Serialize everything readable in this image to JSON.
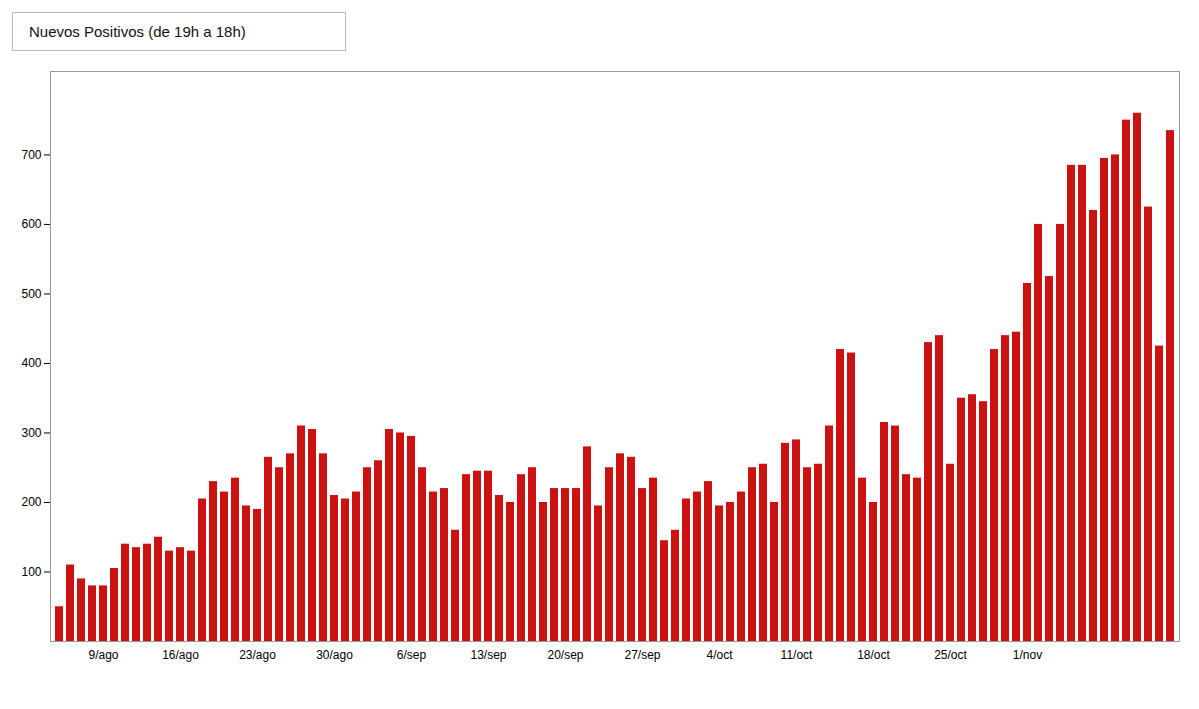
{
  "chart_data": {
    "type": "bar",
    "title": "Nuevos Positivos (de 19h a 18h)",
    "categories": [
      null,
      null,
      null,
      null,
      "9/ago",
      null,
      null,
      null,
      null,
      null,
      null,
      "16/ago",
      null,
      null,
      null,
      null,
      null,
      null,
      "23/ago",
      null,
      null,
      null,
      null,
      null,
      null,
      "30/ago",
      null,
      null,
      null,
      null,
      null,
      null,
      "6/sep",
      null,
      null,
      null,
      null,
      null,
      null,
      "13/sep",
      null,
      null,
      null,
      null,
      null,
      null,
      "20/sep",
      null,
      null,
      null,
      null,
      null,
      null,
      "27/sep",
      null,
      null,
      null,
      null,
      null,
      null,
      "4/oct",
      null,
      null,
      null,
      null,
      null,
      null,
      "11/oct",
      null,
      null,
      null,
      null,
      null,
      null,
      "18/oct",
      null,
      null,
      null,
      null,
      null,
      null,
      "25/oct",
      null,
      null,
      null,
      null,
      null,
      null,
      "1/nov",
      null,
      null,
      null,
      null,
      null,
      null,
      null,
      null,
      null,
      null,
      null,
      null,
      null
    ],
    "values": [
      50,
      110,
      90,
      80,
      80,
      105,
      140,
      135,
      140,
      150,
      130,
      135,
      130,
      205,
      230,
      215,
      235,
      195,
      190,
      265,
      250,
      270,
      310,
      305,
      270,
      210,
      205,
      215,
      250,
      260,
      305,
      300,
      295,
      250,
      215,
      220,
      160,
      240,
      245,
      245,
      210,
      200,
      240,
      250,
      200,
      220,
      220,
      220,
      280,
      195,
      250,
      270,
      265,
      220,
      235,
      145,
      160,
      205,
      215,
      230,
      195,
      200,
      215,
      250,
      255,
      200,
      285,
      290,
      250,
      255,
      310,
      420,
      415,
      235,
      200,
      315,
      310,
      240,
      235,
      430,
      440,
      255,
      350,
      355,
      345,
      420,
      440,
      445,
      515,
      600,
      525,
      600,
      685,
      685,
      620,
      695,
      700,
      750,
      760,
      625,
      425,
      735
    ],
    "color": "#cc1111",
    "ylim": [
      0,
      820
    ],
    "yticks": [
      100,
      200,
      300,
      400,
      500,
      600,
      700
    ],
    "grid": false
  }
}
